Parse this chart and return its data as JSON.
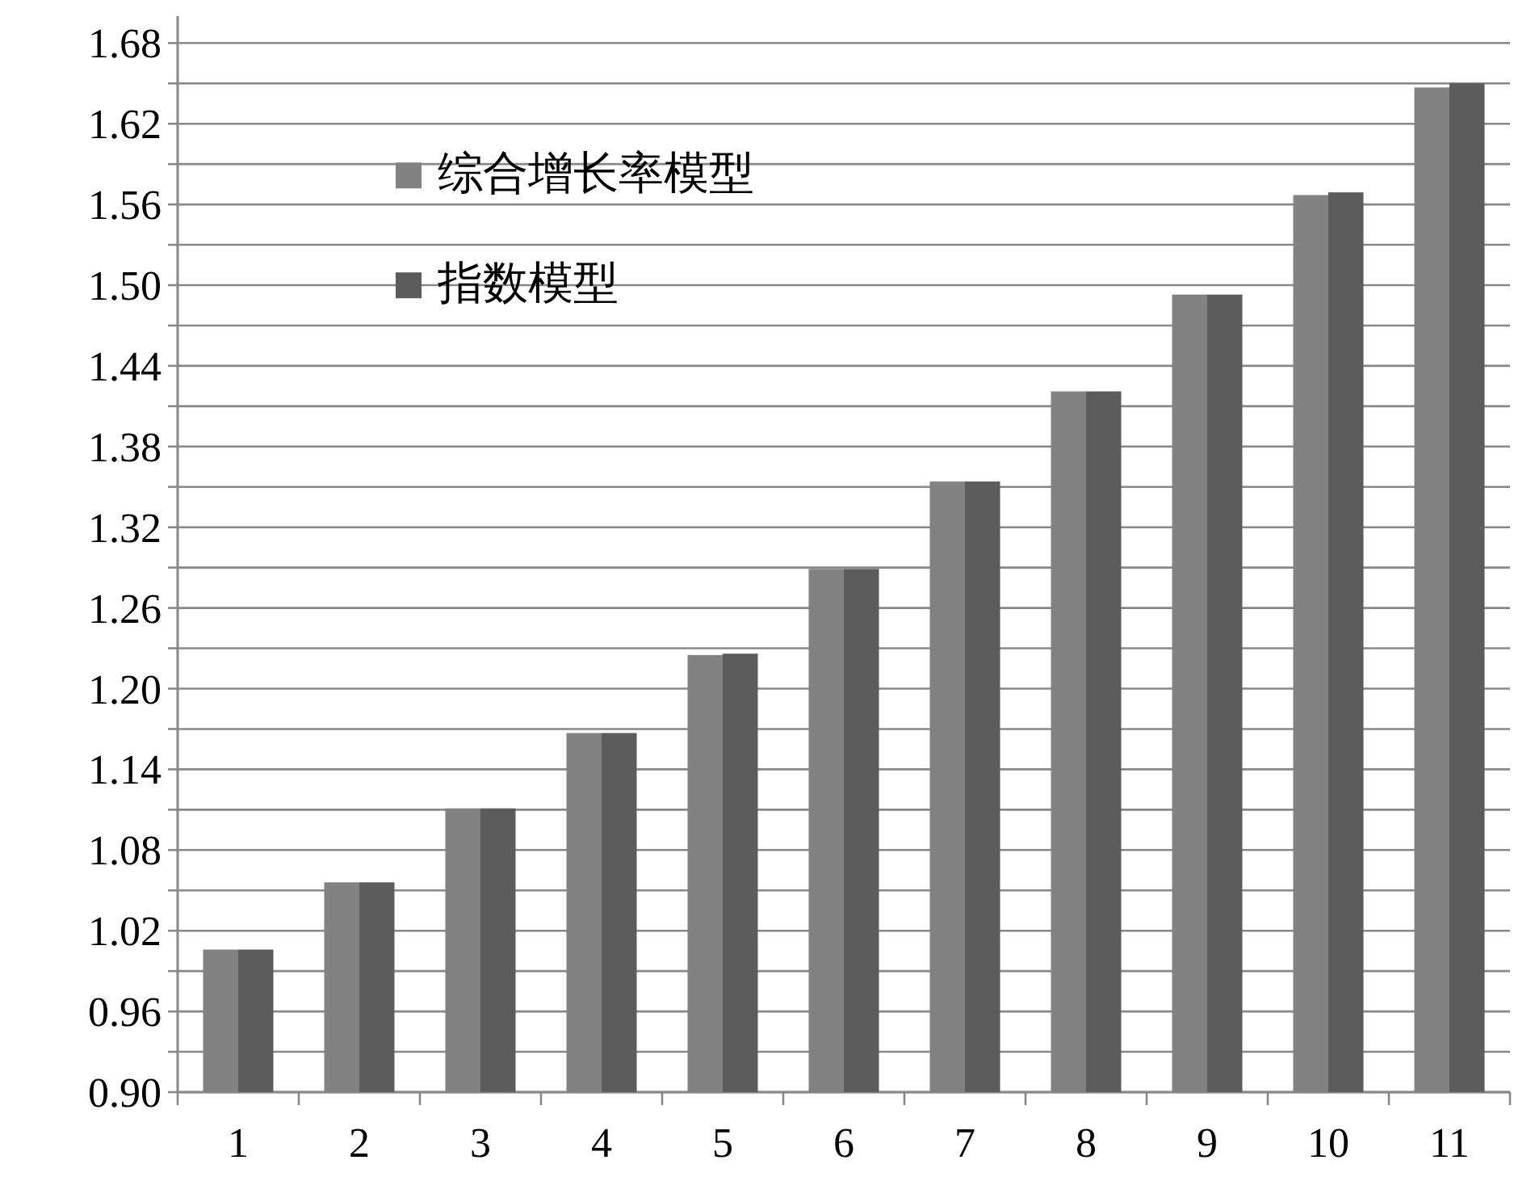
{
  "chart_data": {
    "type": "bar",
    "categories": [
      "1",
      "2",
      "3",
      "4",
      "5",
      "6",
      "7",
      "8",
      "9",
      "10",
      "11"
    ],
    "series": [
      {
        "name": "综合增长率模型",
        "color": "#828282",
        "values": [
          1.006,
          1.056,
          1.111,
          1.167,
          1.225,
          1.289,
          1.354,
          1.421,
          1.493,
          1.567,
          1.647
        ]
      },
      {
        "name": "指数模型",
        "color": "#5c5c5c",
        "values": [
          1.006,
          1.056,
          1.111,
          1.167,
          1.226,
          1.289,
          1.354,
          1.421,
          1.493,
          1.569,
          1.65
        ]
      }
    ],
    "ylim": [
      0.9,
      1.7
    ],
    "yticks": [
      {
        "value": 0.9,
        "label": "0.90"
      },
      {
        "value": 0.93,
        "label": null
      },
      {
        "value": 0.96,
        "label": "0.96"
      },
      {
        "value": 0.99,
        "label": null
      },
      {
        "value": 1.02,
        "label": "1.02"
      },
      {
        "value": 1.05,
        "label": null
      },
      {
        "value": 1.08,
        "label": "1.08"
      },
      {
        "value": 1.11,
        "label": null
      },
      {
        "value": 1.14,
        "label": "1.14"
      },
      {
        "value": 1.17,
        "label": null
      },
      {
        "value": 1.2,
        "label": "1.20"
      },
      {
        "value": 1.23,
        "label": null
      },
      {
        "value": 1.26,
        "label": "1.26"
      },
      {
        "value": 1.29,
        "label": null
      },
      {
        "value": 1.32,
        "label": "1.32"
      },
      {
        "value": 1.35,
        "label": null
      },
      {
        "value": 1.38,
        "label": "1.38"
      },
      {
        "value": 1.41,
        "label": null
      },
      {
        "value": 1.44,
        "label": "1.44"
      },
      {
        "value": 1.47,
        "label": null
      },
      {
        "value": 1.5,
        "label": "1.50"
      },
      {
        "value": 1.53,
        "label": null
      },
      {
        "value": 1.56,
        "label": "1.56"
      },
      {
        "value": 1.59,
        "label": null
      },
      {
        "value": 1.62,
        "label": "1.62"
      },
      {
        "value": 1.65,
        "label": null
      },
      {
        "value": 1.68,
        "label": "1.68"
      }
    ],
    "grid": "y",
    "legend": "top left"
  }
}
